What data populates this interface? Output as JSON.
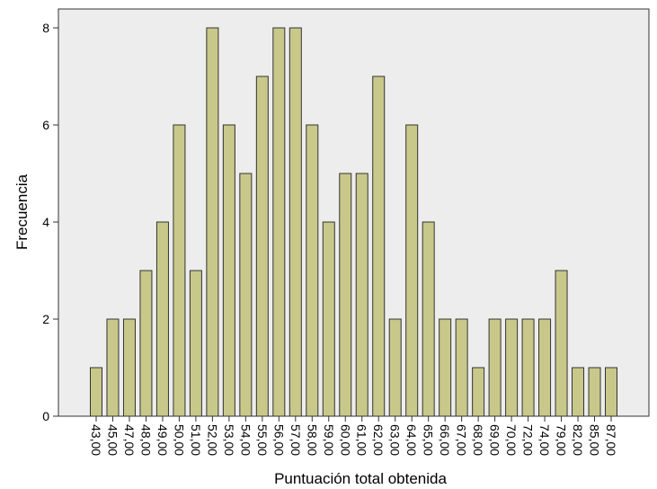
{
  "chart_data": {
    "type": "bar",
    "xlabel": "Puntuación total obtenida",
    "ylabel": "Frecuencia",
    "ylim": [
      0,
      8
    ],
    "yticks": [
      "0",
      "2",
      "4",
      "6",
      "8"
    ],
    "categories": [
      "43,00",
      "45,00",
      "47,00",
      "48,00",
      "49,00",
      "50,00",
      "51,00",
      "52,00",
      "53,00",
      "54,00",
      "55,00",
      "56,00",
      "57,00",
      "58,00",
      "59,00",
      "60,00",
      "61,00",
      "62,00",
      "63,00",
      "64,00",
      "65,00",
      "66,00",
      "67,00",
      "68,00",
      "69,00",
      "70,00",
      "72,00",
      "74,00",
      "79,00",
      "82,00",
      "85,00",
      "87,00"
    ],
    "values": [
      1,
      2,
      2,
      3,
      4,
      6,
      3,
      8,
      6,
      5,
      7,
      8,
      8,
      6,
      4,
      5,
      5,
      7,
      2,
      6,
      4,
      2,
      2,
      1,
      2,
      2,
      2,
      2,
      3,
      1,
      1,
      1
    ],
    "grid": false,
    "colors": {
      "bar_fill": "#c8c88a",
      "bar_stroke": "#333333",
      "plot_background": "#ededed",
      "frame": "#333333"
    }
  }
}
